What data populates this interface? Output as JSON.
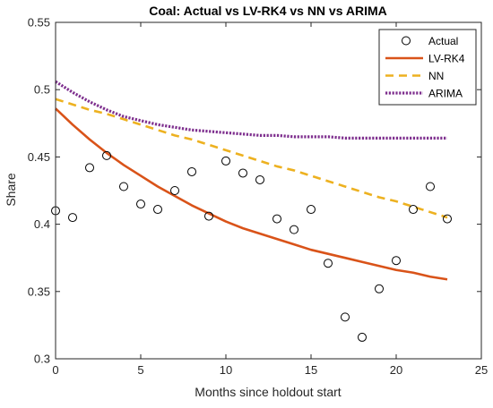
{
  "chart_data": {
    "type": "line",
    "title": "Coal: Actual vs LV-RK4 vs NN vs  ARIMA",
    "xlabel": "Months since holdout start",
    "ylabel": "Share",
    "xlim": [
      0,
      25
    ],
    "ylim": [
      0.3,
      0.55
    ],
    "xticks": [
      0,
      5,
      10,
      15,
      20,
      25
    ],
    "xtick_labels": [
      "0",
      "5",
      "10",
      "15",
      "20",
      "25"
    ],
    "yticks": [
      0.3,
      0.35,
      0.4,
      0.45,
      0.5,
      0.55
    ],
    "ytick_labels": [
      "0.3",
      "0.35",
      "0.4",
      "0.45",
      "0.5",
      "0.55"
    ],
    "grid": false,
    "legend_position": "top-right",
    "x": [
      0,
      1,
      2,
      3,
      4,
      5,
      6,
      7,
      8,
      9,
      10,
      11,
      12,
      13,
      14,
      15,
      16,
      17,
      18,
      19,
      20,
      21,
      22,
      23
    ],
    "series": [
      {
        "name": "Actual",
        "style": "markers",
        "marker": "circle",
        "color": "#000000",
        "values": [
          0.41,
          0.405,
          0.442,
          0.451,
          0.428,
          0.415,
          0.411,
          0.425,
          0.439,
          0.406,
          0.447,
          0.438,
          0.433,
          0.404,
          0.396,
          0.411,
          0.371,
          0.331,
          0.316,
          0.352,
          0.373,
          0.411,
          0.428,
          0.404
        ]
      },
      {
        "name": "LV-RK4",
        "style": "solid",
        "color": "#D95319",
        "values": [
          0.486,
          0.474,
          0.463,
          0.453,
          0.444,
          0.436,
          0.428,
          0.421,
          0.414,
          0.408,
          0.402,
          0.397,
          0.393,
          0.389,
          0.385,
          0.381,
          0.378,
          0.375,
          0.372,
          0.369,
          0.366,
          0.364,
          0.361,
          0.359
        ]
      },
      {
        "name": "NN",
        "style": "dashed",
        "color": "#EDB120",
        "values": [
          0.493,
          0.489,
          0.485,
          0.482,
          0.478,
          0.474,
          0.47,
          0.466,
          0.463,
          0.459,
          0.455,
          0.451,
          0.447,
          0.443,
          0.44,
          0.436,
          0.432,
          0.428,
          0.424,
          0.42,
          0.417,
          0.413,
          0.409,
          0.405
        ]
      },
      {
        "name": "ARIMA",
        "style": "dotted",
        "color": "#7E2F8E",
        "values": [
          0.506,
          0.498,
          0.491,
          0.485,
          0.48,
          0.477,
          0.474,
          0.472,
          0.47,
          0.469,
          0.468,
          0.467,
          0.466,
          0.466,
          0.465,
          0.465,
          0.465,
          0.464,
          0.464,
          0.464,
          0.464,
          0.464,
          0.464,
          0.464
        ]
      }
    ]
  }
}
